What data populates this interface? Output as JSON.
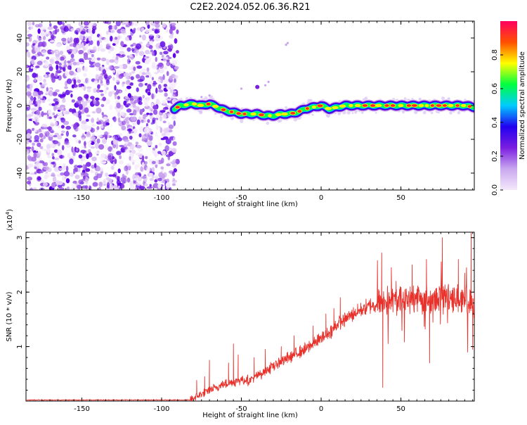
{
  "title": "C2E2.2024.052.06.36.R21",
  "chart_data": [
    {
      "type": "heatmap",
      "xlabel": "Height of straight line (km)",
      "ylabel": "Frequency (Hz)",
      "xlim": [
        -185,
        96
      ],
      "ylim": [
        -50,
        50
      ],
      "x_ticks": [
        -150,
        -100,
        -50,
        0,
        50
      ],
      "y_ticks": [
        -40,
        -20,
        0,
        20,
        40
      ],
      "noise_region_x": [
        -185,
        -90
      ],
      "ridge": {
        "x": [
          -92,
          -88,
          -80,
          -75,
          -70,
          -65,
          -60,
          -55,
          -50,
          -45,
          -40,
          -35,
          -30,
          -25,
          -20,
          -15,
          -10,
          -5,
          0,
          5,
          10,
          15,
          20,
          30,
          40,
          50,
          60,
          70,
          80,
          90,
          96
        ],
        "y": [
          -2,
          0,
          1,
          0,
          1,
          -1,
          -3,
          -4,
          -5,
          -5,
          -5,
          -6,
          -6,
          -5,
          -5,
          -4,
          -2,
          -1,
          0,
          -2,
          -1,
          0,
          0,
          0,
          0,
          0,
          0,
          0,
          0,
          0,
          -1
        ]
      },
      "stray_points": {
        "x": [
          -75,
          -70,
          -50,
          -40,
          -35,
          -33,
          -22,
          -21
        ],
        "y": [
          5,
          6,
          10,
          11,
          12,
          14,
          36,
          37
        ]
      },
      "colorbar": {
        "label": "Normalized spectral amplitude",
        "range": [
          0,
          1
        ],
        "ticks": [
          "0.0",
          "0.2",
          "0.4",
          "0.6",
          "0.8"
        ],
        "tick_values": [
          0,
          0.2,
          0.4,
          0.6,
          0.8
        ]
      },
      "colorscale": [
        "#f4e9fb",
        "#c9a7ee",
        "#7a1ee0",
        "#2200f0",
        "#00ccff",
        "#00ff40",
        "#ffff00",
        "#ff5000",
        "#ff0060"
      ],
      "grid": false
    },
    {
      "type": "line",
      "xlabel": "Height of straight line (km)",
      "ylabel": "SNR (10 * v/v)",
      "y_multiplier": "(x10",
      "y_multiplier_exp": "4",
      "y_multiplier_close": ")",
      "xlim": [
        -185,
        96
      ],
      "ylim": [
        0,
        3.1
      ],
      "x_ticks": [
        -150,
        -100,
        -50,
        0,
        50
      ],
      "y_ticks": [
        1,
        2,
        3
      ],
      "color": "#e8312b",
      "trend": {
        "x": [
          -185,
          -82,
          -78,
          -70,
          -62,
          -55,
          -50,
          -45,
          -38,
          -30,
          -20,
          -10,
          -5,
          0,
          5,
          10,
          20,
          30,
          38,
          45,
          50,
          60,
          70,
          80,
          90,
          96
        ],
        "y": [
          0.02,
          0.02,
          0.08,
          0.2,
          0.3,
          0.35,
          0.4,
          0.38,
          0.5,
          0.65,
          0.8,
          0.95,
          1.05,
          1.15,
          1.25,
          1.4,
          1.6,
          1.75,
          1.8,
          1.85,
          1.85,
          1.9,
          1.85,
          1.95,
          1.8,
          1.75
        ]
      },
      "spikes": {
        "x": [
          -78,
          -73,
          -70,
          -58,
          -55,
          -52,
          -42,
          -35,
          -25,
          -17,
          -5,
          3,
          8,
          12,
          38,
          38.6,
          44,
          47,
          57,
          66,
          68,
          76,
          78,
          86,
          90,
          94,
          95
        ],
        "y": [
          0.38,
          0.45,
          0.75,
          0.7,
          1.05,
          0.85,
          0.8,
          0.95,
          1.0,
          1.2,
          1.38,
          1.6,
          1.7,
          1.9,
          2.72,
          0.25,
          2.45,
          2.2,
          2.5,
          2.6,
          0.7,
          3.0,
          2.0,
          2.6,
          2.35,
          3.1,
          0.95
        ]
      },
      "grid": false
    }
  ]
}
